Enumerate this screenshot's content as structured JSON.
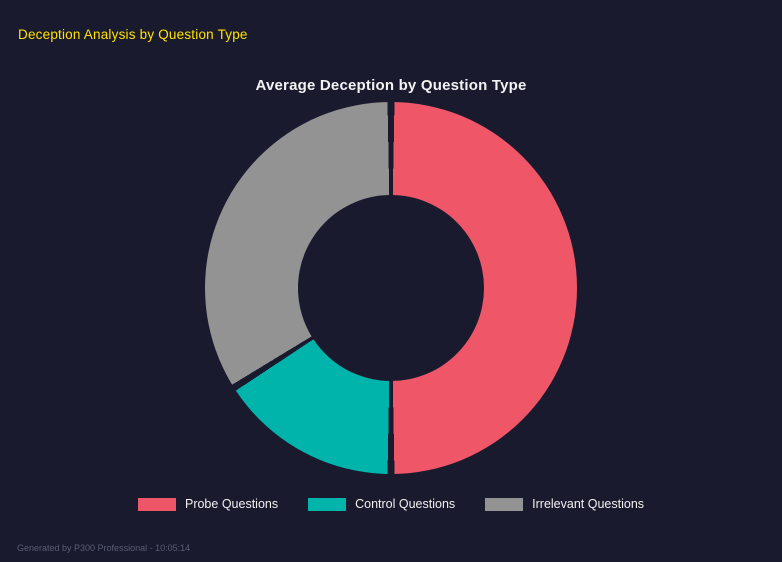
{
  "page": {
    "header_title": "Deception Analysis by Question Type",
    "footer_text": "Generated by P300 Professional - 10:05:14"
  },
  "colors": {
    "background": "#1a1a2e",
    "header_yellow": "#ffe100",
    "title_white": "#f2f2f2",
    "footer_gray": "#585d72"
  },
  "chart_data": {
    "type": "pie",
    "donut": true,
    "title": "Average Deception by Question Type",
    "categories": [
      "Probe Questions",
      "Control Questions",
      "Irrelevant Questions"
    ],
    "values": [
      50,
      16,
      34
    ],
    "value_unit": "percent_share_estimated",
    "colors": [
      "#ef5668",
      "#00b3ab",
      "#939393"
    ],
    "start_angle_deg": 0,
    "direction": "clockwise",
    "inner_radius_ratio": 0.5,
    "legend_position": "bottom",
    "grid": false
  }
}
